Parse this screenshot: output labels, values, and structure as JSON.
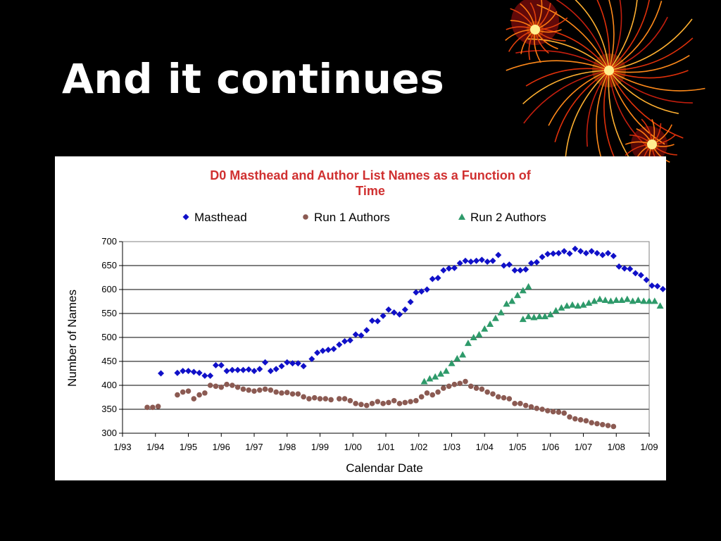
{
  "slide": {
    "title": "And it continues"
  },
  "colors": {
    "background": "#000000",
    "title_text": "#ffffff",
    "chart_title": "#d03030",
    "masthead": "#1010c8",
    "run1": "#8b5a52",
    "run2": "#2e9a6a"
  },
  "decoration": {
    "icon": "fireworks-icon"
  },
  "chart_data": {
    "type": "scatter",
    "title_lines": [
      "D0 Masthead and Author List Names as a Function of",
      "Time"
    ],
    "xlabel": "Calendar Date",
    "ylabel": "Number of Names",
    "x_ticks": [
      "1/93",
      "1/94",
      "1/95",
      "1/96",
      "1/97",
      "1/98",
      "1/99",
      "1/00",
      "1/01",
      "1/02",
      "1/03",
      "1/04",
      "1/05",
      "1/06",
      "1/07",
      "1/08",
      "1/09"
    ],
    "xlim": [
      "1993-01",
      "2009-01"
    ],
    "ylim": [
      300,
      700
    ],
    "y_ticks": [
      300,
      350,
      400,
      450,
      500,
      550,
      600,
      650,
      700
    ],
    "grid": "horizontal",
    "legend_position": "top",
    "series": [
      {
        "name": "Masthead",
        "marker": "diamond",
        "color": "#1010c8",
        "points": [
          [
            "1994-03",
            425
          ],
          [
            "1994-09",
            426
          ],
          [
            "1994-11",
            430
          ],
          [
            "1995-01",
            430
          ],
          [
            "1995-03",
            428
          ],
          [
            "1995-05",
            426
          ],
          [
            "1995-07",
            420
          ],
          [
            "1995-09",
            420
          ],
          [
            "1995-11",
            442
          ],
          [
            "1996-01",
            442
          ],
          [
            "1996-03",
            430
          ],
          [
            "1996-05",
            432
          ],
          [
            "1996-07",
            432
          ],
          [
            "1996-09",
            432
          ],
          [
            "1996-11",
            433
          ],
          [
            "1997-01",
            430
          ],
          [
            "1997-03",
            434
          ],
          [
            "1997-05",
            448
          ],
          [
            "1997-07",
            430
          ],
          [
            "1997-09",
            434
          ],
          [
            "1997-11",
            440
          ],
          [
            "1998-01",
            448
          ],
          [
            "1998-03",
            446
          ],
          [
            "1998-05",
            446
          ],
          [
            "1998-07",
            440
          ],
          [
            "1998-10",
            455
          ],
          [
            "1998-12",
            468
          ],
          [
            "1999-02",
            472
          ],
          [
            "1999-04",
            474
          ],
          [
            "1999-06",
            476
          ],
          [
            "1999-08",
            485
          ],
          [
            "1999-10",
            492
          ],
          [
            "1999-12",
            494
          ],
          [
            "2000-02",
            506
          ],
          [
            "2000-04",
            504
          ],
          [
            "2000-06",
            515
          ],
          [
            "2000-08",
            535
          ],
          [
            "2000-10",
            534
          ],
          [
            "2000-12",
            545
          ],
          [
            "2001-02",
            558
          ],
          [
            "2001-04",
            552
          ],
          [
            "2001-06",
            548
          ],
          [
            "2001-08",
            558
          ],
          [
            "2001-10",
            574
          ],
          [
            "2001-12",
            594
          ],
          [
            "2002-02",
            596
          ],
          [
            "2002-04",
            600
          ],
          [
            "2002-06",
            622
          ],
          [
            "2002-08",
            624
          ],
          [
            "2002-10",
            640
          ],
          [
            "2002-12",
            644
          ],
          [
            "2003-02",
            645
          ],
          [
            "2003-04",
            655
          ],
          [
            "2003-06",
            660
          ],
          [
            "2003-08",
            658
          ],
          [
            "2003-10",
            660
          ],
          [
            "2003-12",
            662
          ],
          [
            "2004-02",
            658
          ],
          [
            "2004-04",
            660
          ],
          [
            "2004-06",
            672
          ],
          [
            "2004-08",
            650
          ],
          [
            "2004-10",
            652
          ],
          [
            "2004-12",
            640
          ],
          [
            "2005-02",
            640
          ],
          [
            "2005-04",
            642
          ],
          [
            "2005-06",
            655
          ],
          [
            "2005-08",
            657
          ],
          [
            "2005-10",
            668
          ],
          [
            "2005-12",
            674
          ],
          [
            "2006-02",
            675
          ],
          [
            "2006-04",
            676
          ],
          [
            "2006-06",
            680
          ],
          [
            "2006-08",
            675
          ],
          [
            "2006-10",
            685
          ],
          [
            "2006-12",
            680
          ],
          [
            "2007-02",
            676
          ],
          [
            "2007-04",
            680
          ],
          [
            "2007-06",
            676
          ],
          [
            "2007-08",
            672
          ],
          [
            "2007-10",
            676
          ],
          [
            "2007-12",
            670
          ],
          [
            "2008-02",
            648
          ],
          [
            "2008-04",
            644
          ],
          [
            "2008-06",
            643
          ],
          [
            "2008-08",
            634
          ],
          [
            "2008-10",
            630
          ],
          [
            "2008-12",
            620
          ],
          [
            "2009-02",
            608
          ],
          [
            "2009-04",
            607
          ],
          [
            "2009-06",
            601
          ]
        ]
      },
      {
        "name": "Run 1 Authors",
        "marker": "circle",
        "color": "#8b5a52",
        "points": [
          [
            "1993-10",
            354
          ],
          [
            "1993-12",
            354
          ],
          [
            "1994-02",
            356
          ],
          [
            "1994-09",
            380
          ],
          [
            "1994-11",
            386
          ],
          [
            "1995-01",
            388
          ],
          [
            "1995-03",
            372
          ],
          [
            "1995-05",
            380
          ],
          [
            "1995-07",
            384
          ],
          [
            "1995-09",
            400
          ],
          [
            "1995-11",
            398
          ],
          [
            "1996-01",
            396
          ],
          [
            "1996-03",
            402
          ],
          [
            "1996-05",
            400
          ],
          [
            "1996-07",
            396
          ],
          [
            "1996-09",
            392
          ],
          [
            "1996-11",
            390
          ],
          [
            "1997-01",
            388
          ],
          [
            "1997-03",
            390
          ],
          [
            "1997-05",
            392
          ],
          [
            "1997-07",
            390
          ],
          [
            "1997-09",
            386
          ],
          [
            "1997-11",
            384
          ],
          [
            "1998-01",
            385
          ],
          [
            "1998-03",
            382
          ],
          [
            "1998-05",
            382
          ],
          [
            "1998-07",
            376
          ],
          [
            "1998-09",
            372
          ],
          [
            "1998-11",
            374
          ],
          [
            "1999-01",
            372
          ],
          [
            "1999-03",
            372
          ],
          [
            "1999-05",
            370
          ],
          [
            "1999-08",
            372
          ],
          [
            "1999-10",
            372
          ],
          [
            "1999-12",
            368
          ],
          [
            "2000-02",
            362
          ],
          [
            "2000-04",
            360
          ],
          [
            "2000-06",
            358
          ],
          [
            "2000-08",
            362
          ],
          [
            "2000-10",
            366
          ],
          [
            "2000-12",
            362
          ],
          [
            "2001-02",
            364
          ],
          [
            "2001-04",
            368
          ],
          [
            "2001-06",
            362
          ],
          [
            "2001-08",
            364
          ],
          [
            "2001-10",
            366
          ],
          [
            "2001-12",
            368
          ],
          [
            "2002-02",
            376
          ],
          [
            "2002-04",
            384
          ],
          [
            "2002-06",
            380
          ],
          [
            "2002-08",
            386
          ],
          [
            "2002-10",
            394
          ],
          [
            "2002-12",
            398
          ],
          [
            "2003-02",
            402
          ],
          [
            "2003-04",
            404
          ],
          [
            "2003-06",
            408
          ],
          [
            "2003-08",
            398
          ],
          [
            "2003-10",
            394
          ],
          [
            "2003-12",
            392
          ],
          [
            "2004-02",
            386
          ],
          [
            "2004-04",
            382
          ],
          [
            "2004-06",
            376
          ],
          [
            "2004-08",
            374
          ],
          [
            "2004-10",
            372
          ],
          [
            "2004-12",
            362
          ],
          [
            "2005-02",
            362
          ],
          [
            "2005-04",
            358
          ],
          [
            "2005-06",
            355
          ],
          [
            "2005-08",
            352
          ],
          [
            "2005-10",
            350
          ],
          [
            "2005-12",
            347
          ],
          [
            "2006-02",
            345
          ],
          [
            "2006-04",
            344
          ],
          [
            "2006-06",
            342
          ],
          [
            "2006-08",
            334
          ],
          [
            "2006-10",
            330
          ],
          [
            "2006-12",
            328
          ],
          [
            "2007-02",
            326
          ],
          [
            "2007-04",
            322
          ],
          [
            "2007-06",
            320
          ],
          [
            "2007-08",
            318
          ],
          [
            "2007-10",
            316
          ],
          [
            "2007-12",
            314
          ]
        ]
      },
      {
        "name": "Run 2 Authors",
        "marker": "triangle",
        "color": "#2e9a6a",
        "points": [
          [
            "2002-03",
            408
          ],
          [
            "2002-05",
            414
          ],
          [
            "2002-07",
            418
          ],
          [
            "2002-09",
            424
          ],
          [
            "2002-11",
            430
          ],
          [
            "2003-01",
            446
          ],
          [
            "2003-03",
            456
          ],
          [
            "2003-05",
            464
          ],
          [
            "2003-07",
            488
          ],
          [
            "2003-09",
            500
          ],
          [
            "2003-11",
            506
          ],
          [
            "2004-01",
            518
          ],
          [
            "2004-03",
            528
          ],
          [
            "2004-05",
            540
          ],
          [
            "2004-07",
            552
          ],
          [
            "2004-09",
            570
          ],
          [
            "2004-11",
            576
          ],
          [
            "2005-01",
            588
          ],
          [
            "2005-03",
            598
          ],
          [
            "2005-05",
            606
          ],
          [
            "2005-03",
            538
          ],
          [
            "2005-05",
            544
          ],
          [
            "2005-07",
            542
          ],
          [
            "2005-09",
            544
          ],
          [
            "2005-11",
            544
          ],
          [
            "2006-01",
            548
          ],
          [
            "2006-03",
            556
          ],
          [
            "2006-05",
            562
          ],
          [
            "2006-07",
            566
          ],
          [
            "2006-09",
            568
          ],
          [
            "2006-11",
            566
          ],
          [
            "2007-01",
            568
          ],
          [
            "2007-03",
            572
          ],
          [
            "2007-05",
            576
          ],
          [
            "2007-07",
            580
          ],
          [
            "2007-09",
            578
          ],
          [
            "2007-11",
            576
          ],
          [
            "2008-01",
            578
          ],
          [
            "2008-03",
            578
          ],
          [
            "2008-05",
            580
          ],
          [
            "2008-07",
            576
          ],
          [
            "2008-09",
            578
          ],
          [
            "2008-11",
            576
          ],
          [
            "2009-01",
            576
          ],
          [
            "2009-03",
            576
          ],
          [
            "2009-05",
            566
          ]
        ]
      }
    ]
  }
}
